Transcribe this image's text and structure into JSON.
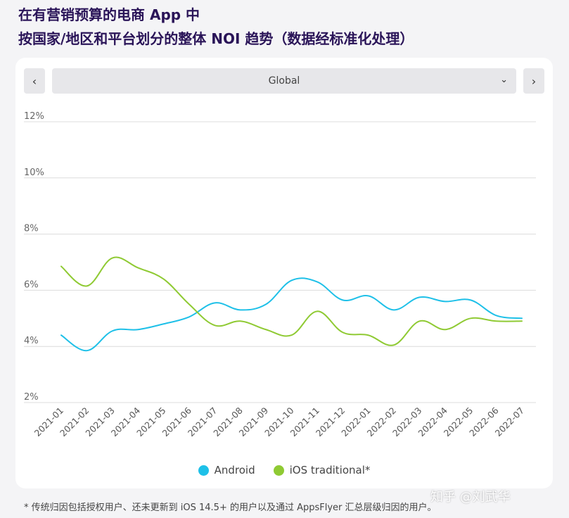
{
  "page": {
    "title_line1": "在有营销预算的电商 App 中",
    "title_line2": "按国家/地区和平台划分的整体 NOI 趋势（数据经标准化处理）",
    "footnote": "* 传统归因包括授权用户、还未更新到 iOS 14.5+ 的用户以及通过 AppsFlyer 汇总层级归因的用户。",
    "watermark": "知乎 @刘武华"
  },
  "controls": {
    "prev_icon": "chevron-left-icon",
    "prev_glyph": "‹",
    "next_icon": "chevron-right-icon",
    "next_glyph": "›",
    "region_selected": "Global",
    "dropdown_glyph": "⌄"
  },
  "chart_data": {
    "type": "line",
    "x": [
      "2021-01",
      "2021-02",
      "2021-03",
      "2021-04",
      "2021-05",
      "2021-06",
      "2021-07",
      "2021-08",
      "2021-09",
      "2021-10",
      "2021-11",
      "2021-12",
      "2022-01",
      "2022-02",
      "2022-03",
      "2022-04",
      "2022-05",
      "2022-06",
      "2022-07"
    ],
    "y_ticks": [
      "12%",
      "10%",
      "8%",
      "6%",
      "4%",
      "2%"
    ],
    "y_tick_values": [
      12,
      10,
      8,
      6,
      4,
      2
    ],
    "ylim": [
      2,
      12
    ],
    "grid": true,
    "legend_position": "bottom-center",
    "series": [
      {
        "name": "Android",
        "color": "#1ec0e8",
        "values": [
          4.4,
          3.85,
          4.55,
          4.6,
          4.8,
          5.05,
          5.55,
          5.3,
          5.5,
          6.35,
          6.3,
          5.65,
          5.8,
          5.3,
          5.75,
          5.6,
          5.65,
          5.1,
          5.0
        ]
      },
      {
        "name": "iOS traditional*",
        "color": "#8fca33",
        "values": [
          6.85,
          6.15,
          7.15,
          6.8,
          6.4,
          5.5,
          4.75,
          4.9,
          4.6,
          4.4,
          5.25,
          4.5,
          4.4,
          4.05,
          4.9,
          4.6,
          5.0,
          4.9,
          4.9
        ]
      }
    ]
  }
}
